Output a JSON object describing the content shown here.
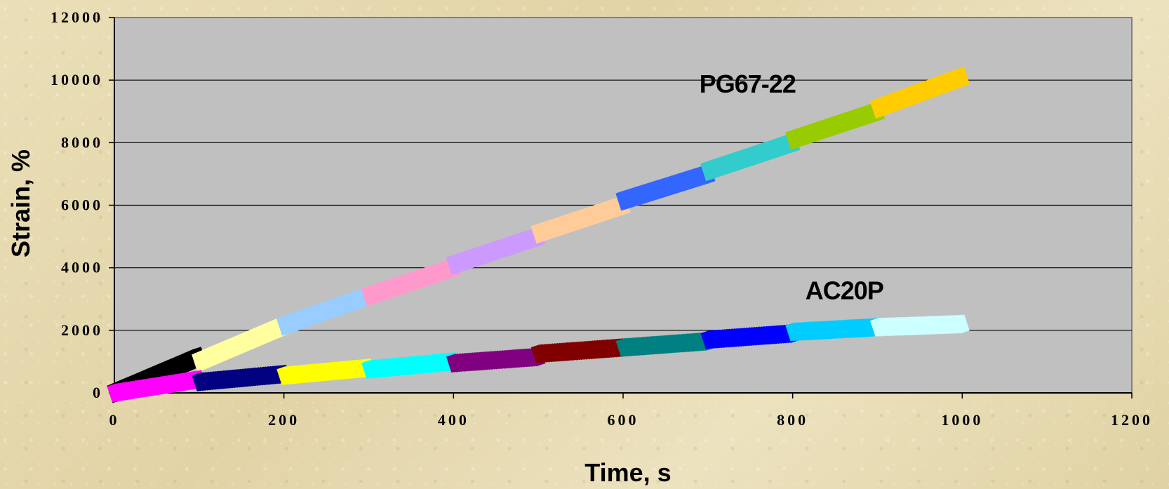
{
  "chart_data": {
    "type": "scatter",
    "xlabel": "Time, s",
    "ylabel": "Strain, %",
    "xlim": [
      0,
      1200
    ],
    "ylim": [
      0,
      12000
    ],
    "xticks": [
      "0",
      "200",
      "400",
      "600",
      "800",
      "1000",
      "1200"
    ],
    "yticks": [
      "0",
      "2000",
      "4000",
      "6000",
      "8000",
      "10000",
      "12000"
    ],
    "grid": true,
    "annotations": [
      {
        "text": "PG67-22",
        "x": 690,
        "y": 9600
      },
      {
        "text": "AC20P",
        "x": 815,
        "y": 3000
      }
    ],
    "series": [
      {
        "segments": [
          {
            "x": [
              0,
              100
            ],
            "y": [
              0,
              1150
            ],
            "color": "#000000"
          },
          {
            "x": [
              100,
              200
            ],
            "y": [
              1000,
              2150
            ],
            "color": "#ffffa0"
          },
          {
            "x": [
              200,
              300
            ],
            "y": [
              2150,
              3100
            ],
            "color": "#99ccff"
          },
          {
            "x": [
              300,
              400
            ],
            "y": [
              3100,
              4000
            ],
            "color": "#ff99cc"
          },
          {
            "x": [
              400,
              500
            ],
            "y": [
              4100,
              5000
            ],
            "color": "#cc99ff"
          },
          {
            "x": [
              500,
              600
            ],
            "y": [
              5100,
              6000
            ],
            "color": "#ffcc99"
          },
          {
            "x": [
              600,
              700
            ],
            "y": [
              6150,
              7000
            ],
            "color": "#3366ff"
          },
          {
            "x": [
              700,
              800
            ],
            "y": [
              7100,
              8000
            ],
            "color": "#33cccc"
          },
          {
            "x": [
              800,
              900
            ],
            "y": [
              8100,
              9000
            ],
            "color": "#99cc00"
          },
          {
            "x": [
              900,
              1000
            ],
            "y": [
              9100,
              10100
            ],
            "color": "#ffcc00"
          }
        ]
      },
      {
        "segments": [
          {
            "x": [
              0,
              100
            ],
            "y": [
              0,
              430
            ],
            "color": "#ff00ff"
          },
          {
            "x": [
              100,
              200
            ],
            "y": [
              350,
              600
            ],
            "color": "#000080"
          },
          {
            "x": [
              200,
              300
            ],
            "y": [
              550,
              800
            ],
            "color": "#ffff00"
          },
          {
            "x": [
              300,
              400
            ],
            "y": [
              750,
              1000
            ],
            "color": "#00ffff"
          },
          {
            "x": [
              400,
              500
            ],
            "y": [
              950,
              1150
            ],
            "color": "#800080"
          },
          {
            "x": [
              500,
              600
            ],
            "y": [
              1250,
              1450
            ],
            "color": "#800000"
          },
          {
            "x": [
              600,
              700
            ],
            "y": [
              1450,
              1650
            ],
            "color": "#008080"
          },
          {
            "x": [
              700,
              800
            ],
            "y": [
              1700,
              1900
            ],
            "color": "#0000ff"
          },
          {
            "x": [
              800,
              900
            ],
            "y": [
              1950,
              2100
            ],
            "color": "#00ccff"
          },
          {
            "x": [
              900,
              1000
            ],
            "y": [
              2100,
              2200
            ],
            "color": "#ccffff"
          }
        ]
      }
    ]
  }
}
